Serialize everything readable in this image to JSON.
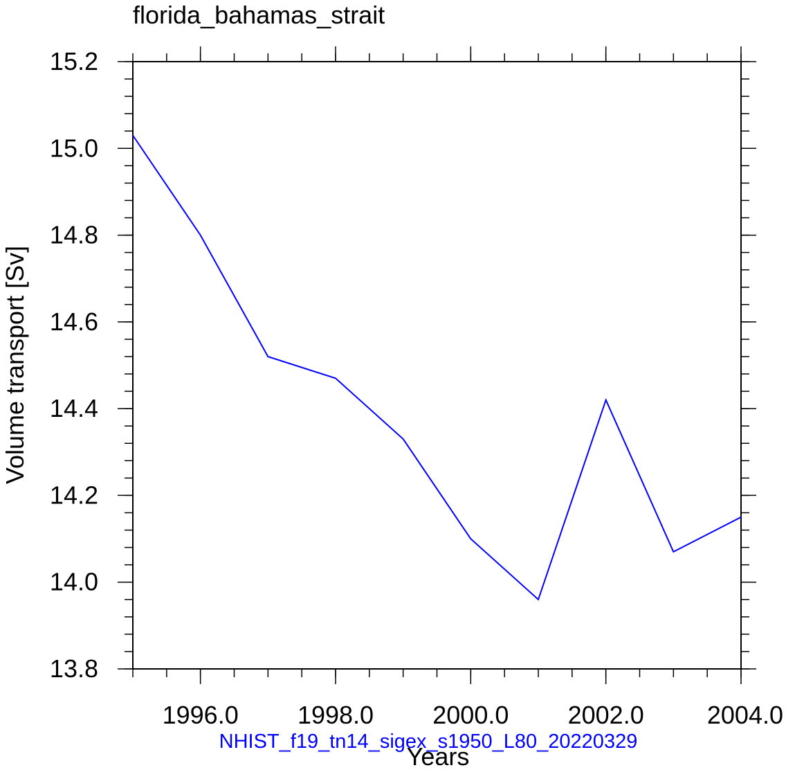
{
  "chart_data": {
    "type": "line",
    "title": "florida_bahamas_strait",
    "xlabel": "Years",
    "ylabel": "Volume transport [Sv]",
    "xlim": [
      1995,
      2004
    ],
    "ylim": [
      13.8,
      15.2
    ],
    "xticks": [
      1996,
      1998,
      2000,
      2002,
      2004
    ],
    "xtick_labels": [
      "1996.0",
      "1998.0",
      "2000.0",
      "2002.0",
      "2004.0"
    ],
    "xminor_step": 0.5,
    "yticks": [
      13.8,
      14.0,
      14.2,
      14.4,
      14.6,
      14.8,
      15.0,
      15.2
    ],
    "ytick_labels": [
      "13.8",
      "14.0",
      "14.2",
      "14.4",
      "14.6",
      "14.8",
      "15.0",
      "15.2"
    ],
    "yminor_step": 0.04,
    "grid": false,
    "series": [
      {
        "name": "NHIST_f19_tn14_sigex_s1950_L80_20220329",
        "color": "#0000ff",
        "x": [
          1995,
          1996,
          1997,
          1998,
          1999,
          2000,
          2001,
          2002,
          2003,
          2004
        ],
        "y": [
          15.03,
          14.8,
          14.52,
          14.47,
          14.33,
          14.1,
          13.96,
          14.42,
          14.07,
          14.15
        ]
      }
    ]
  }
}
